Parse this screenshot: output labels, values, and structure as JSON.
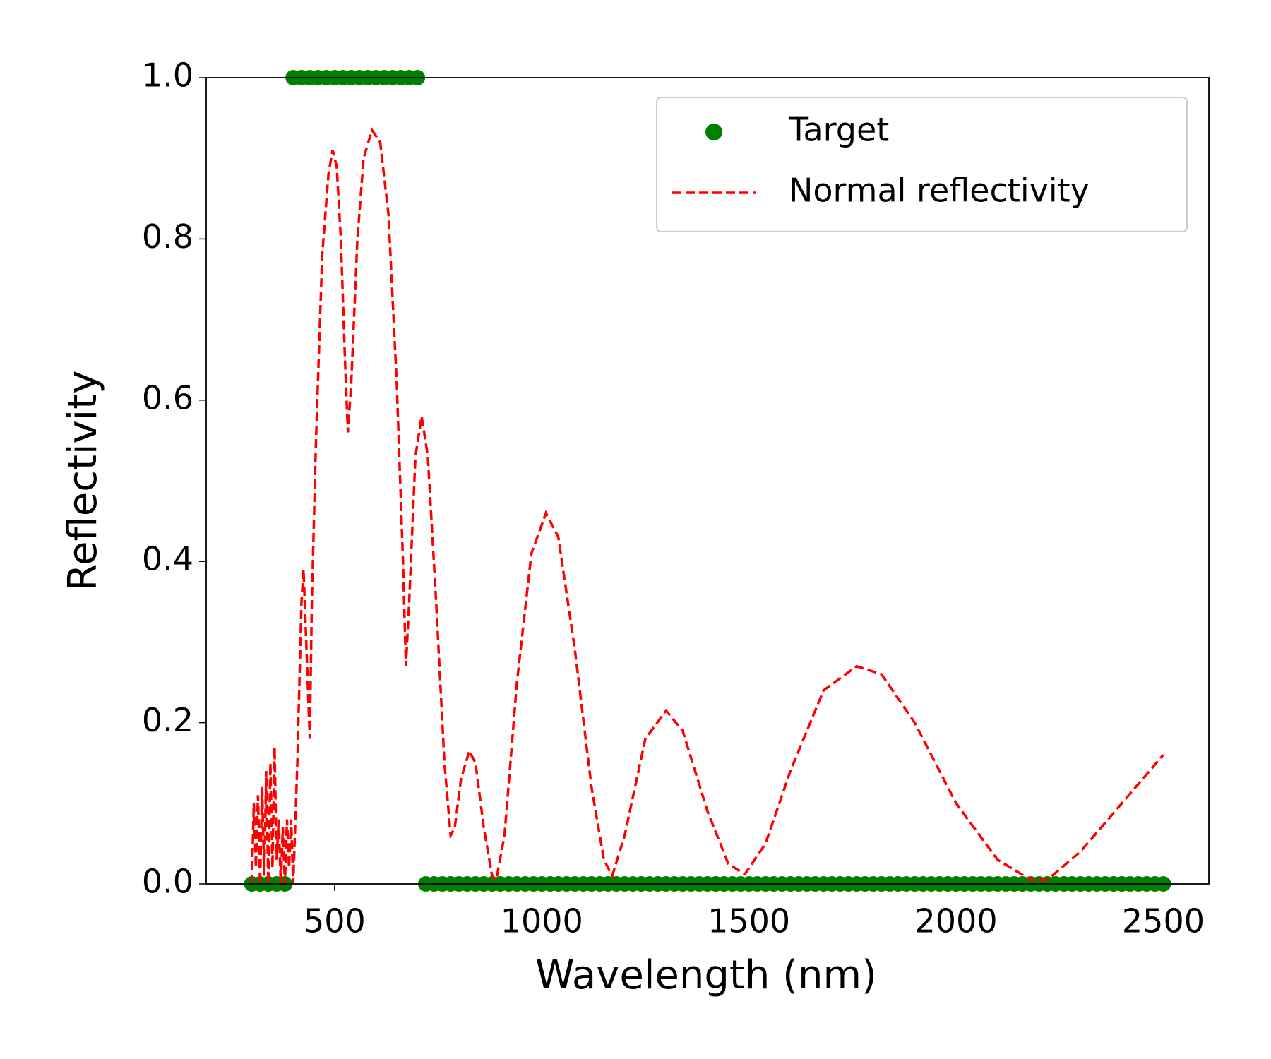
{
  "chart_data": {
    "type": "line",
    "xlabel": "Wavelength (nm)",
    "ylabel": "Reflectivity",
    "xlim": [
      190,
      2610
    ],
    "ylim": [
      0,
      1
    ],
    "xticks": [
      500,
      1000,
      1500,
      2000,
      2500
    ],
    "yticks": [
      {
        "value": 0,
        "label": "0.0"
      },
      {
        "value": 0.2,
        "label": "0.2"
      },
      {
        "value": 0.4,
        "label": "0.4"
      },
      {
        "value": 0.6,
        "label": "0.6"
      },
      {
        "value": 0.8,
        "label": "0.8"
      },
      {
        "value": 1,
        "label": "1.0"
      }
    ],
    "grid": false,
    "legend": "upper right",
    "series": [
      {
        "name": "Target",
        "color": "#008000",
        "marker": "o",
        "linestyle": "none",
        "x": [
          300,
          320,
          340,
          360,
          380,
          400,
          420,
          440,
          460,
          480,
          500,
          520,
          540,
          560,
          580,
          600,
          620,
          640,
          660,
          680,
          700,
          720,
          740,
          760,
          780,
          800,
          820,
          840,
          860,
          880,
          900,
          920,
          940,
          960,
          980,
          1000,
          1020,
          1040,
          1060,
          1080,
          1100,
          1120,
          1140,
          1160,
          1180,
          1200,
          1220,
          1240,
          1260,
          1280,
          1300,
          1320,
          1340,
          1360,
          1380,
          1400,
          1420,
          1440,
          1460,
          1480,
          1500,
          1520,
          1540,
          1560,
          1580,
          1600,
          1620,
          1640,
          1660,
          1680,
          1700,
          1720,
          1740,
          1760,
          1780,
          1800,
          1820,
          1840,
          1860,
          1880,
          1900,
          1920,
          1940,
          1960,
          1980,
          2000,
          2020,
          2040,
          2060,
          2080,
          2100,
          2120,
          2140,
          2160,
          2180,
          2200,
          2220,
          2240,
          2260,
          2280,
          2300,
          2320,
          2340,
          2360,
          2380,
          2400,
          2420,
          2440,
          2460,
          2480,
          2500
        ],
        "values": [
          0,
          0,
          0,
          0,
          0,
          1,
          1,
          1,
          1,
          1,
          1,
          1,
          1,
          1,
          1,
          1,
          1,
          1,
          1,
          1,
          1,
          0,
          0,
          0,
          0,
          0,
          0,
          0,
          0,
          0,
          0,
          0,
          0,
          0,
          0,
          0,
          0,
          0,
          0,
          0,
          0,
          0,
          0,
          0,
          0,
          0,
          0,
          0,
          0,
          0,
          0,
          0,
          0,
          0,
          0,
          0,
          0,
          0,
          0,
          0,
          0,
          0,
          0,
          0,
          0,
          0,
          0,
          0,
          0,
          0,
          0,
          0,
          0,
          0,
          0,
          0,
          0,
          0,
          0,
          0,
          0,
          0,
          0,
          0,
          0,
          0,
          0,
          0,
          0,
          0,
          0,
          0,
          0,
          0,
          0,
          0,
          0,
          0,
          0,
          0,
          0,
          0,
          0,
          0,
          0,
          0,
          0,
          0,
          0,
          0,
          0
        ]
      },
      {
        "name": "Normal reflectivity",
        "color": "#ff0000",
        "marker": "none",
        "linestyle": "--",
        "x": [
          300,
          305,
          310,
          315,
          320,
          325,
          330,
          335,
          340,
          345,
          350,
          355,
          360,
          365,
          370,
          375,
          380,
          385,
          390,
          395,
          400,
          410,
          420,
          425,
          430,
          440,
          445,
          455,
          470,
          485,
          495,
          505,
          515,
          525,
          532,
          540,
          555,
          570,
          590,
          610,
          630,
          650,
          665,
          672,
          680,
          695,
          710,
          725,
          745,
          765,
          780,
          790,
          805,
          825,
          840,
          860,
          880,
          890,
          910,
          940,
          975,
          1010,
          1040,
          1080,
          1120,
          1150,
          1170,
          1200,
          1250,
          1300,
          1340,
          1400,
          1450,
          1490,
          1540,
          1600,
          1680,
          1760,
          1820,
          1900,
          2000,
          2100,
          2180,
          2220,
          2300,
          2400,
          2500
        ],
        "values": [
          0,
          0.1,
          0.02,
          0.11,
          0,
          0.12,
          0.01,
          0.14,
          0,
          0.15,
          0.02,
          0.17,
          0.03,
          0.08,
          0,
          0.07,
          0,
          0.08,
          0.02,
          0.08,
          0,
          0.15,
          0.35,
          0.39,
          0.32,
          0.18,
          0.35,
          0.55,
          0.78,
          0.88,
          0.91,
          0.89,
          0.8,
          0.65,
          0.56,
          0.62,
          0.8,
          0.9,
          0.935,
          0.92,
          0.83,
          0.62,
          0.4,
          0.27,
          0.35,
          0.53,
          0.58,
          0.53,
          0.35,
          0.15,
          0.06,
          0.07,
          0.13,
          0.165,
          0.15,
          0.07,
          0.01,
          0.005,
          0.06,
          0.25,
          0.41,
          0.46,
          0.43,
          0.29,
          0.12,
          0.03,
          0.01,
          0.06,
          0.18,
          0.215,
          0.19,
          0.09,
          0.025,
          0.012,
          0.05,
          0.14,
          0.24,
          0.27,
          0.26,
          0.2,
          0.1,
          0.03,
          0.005,
          0.005,
          0.04,
          0.1,
          0.16
        ]
      }
    ]
  }
}
